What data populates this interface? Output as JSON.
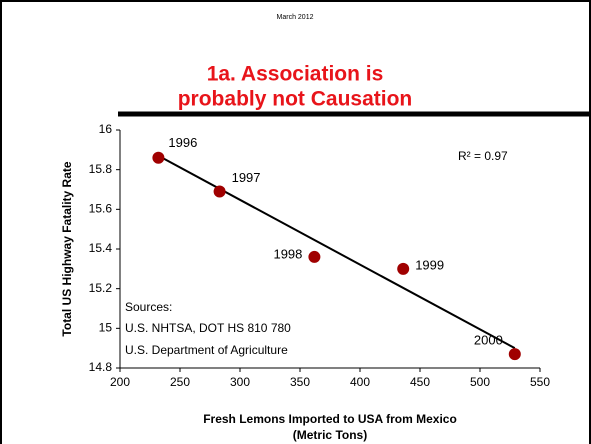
{
  "chart_data": {
    "type": "scatter",
    "header": "March 2012",
    "title_lines": [
      "1a. Association is",
      "probably not Causation"
    ],
    "y_label": "Total US Highway Fatality Rate",
    "x_label_lines": [
      "Fresh Lemons Imported to USA from Mexico",
      "(Metric Tons)"
    ],
    "annotation": "R² = 0.97",
    "sources": [
      "Sources:",
      "U.S. NHTSA, DOT HS 810 780",
      "U.S. Department of Agriculture"
    ],
    "labels": [
      "1996",
      "1997",
      "1998",
      "1999",
      "2000"
    ],
    "x": [
      232,
      283,
      362,
      436,
      529
    ],
    "values": [
      15.86,
      15.69,
      15.36,
      15.3,
      14.87
    ],
    "color": "#a00000",
    "trendline": {
      "x": [
        232,
        529
      ],
      "y": [
        15.87,
        14.9
      ]
    },
    "xlim": [
      200,
      550
    ],
    "xticks": [
      200,
      250,
      300,
      350,
      400,
      450,
      500,
      550
    ],
    "ylim": [
      14.8,
      16
    ],
    "yticks": [
      14.8,
      15,
      15.2,
      15.4,
      15.6,
      15.8,
      16
    ]
  }
}
